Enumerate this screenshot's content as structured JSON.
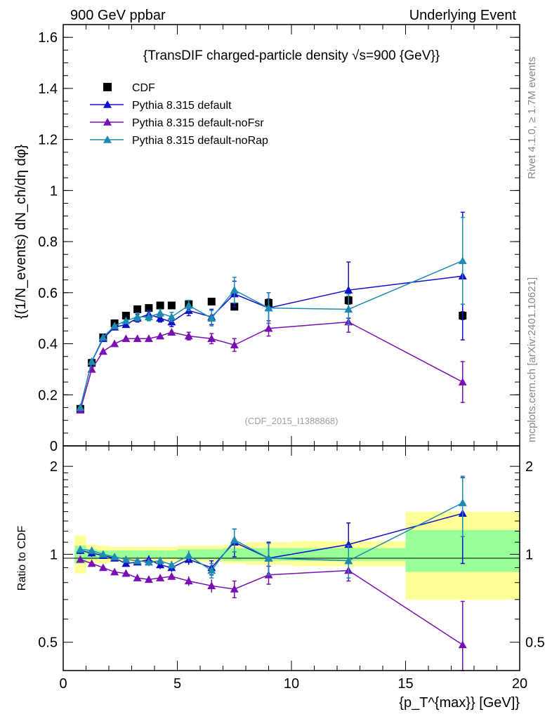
{
  "header": {
    "left": "900 GeV ppbar",
    "right": "Underlying Event"
  },
  "side_labels": {
    "rivet": "Rivet 4.1.0, ≥ 1.7M events",
    "mcplots": "mcplots.cern.ch [arXiv:2401.10621]"
  },
  "chart_data": [
    {
      "type": "scatter",
      "panel": "main",
      "title": "{TransDIF charged-particle density √s=900 {GeV}}",
      "ylabel": "{(1/N_events) dN_ch/dη dφ}",
      "xlabel": "{p_T^{max}} [GeV]}",
      "xlim": [
        0,
        20
      ],
      "ylim": [
        0,
        1.65
      ],
      "yticks": [
        "0",
        "0.2",
        "0.4",
        "0.6",
        "0.8",
        "1",
        "1.2",
        "1.4",
        "1.6"
      ],
      "xticks": [
        "0",
        "5",
        "10",
        "15",
        "20"
      ],
      "watermark": "(CDF_2015_I1388868)",
      "legend": [
        "CDF",
        "Pythia 8.315 default",
        "Pythia 8.315 default-noFsr",
        "Pythia 8.315 default-noRap"
      ],
      "series": [
        {
          "name": "CDF",
          "color": "#000000",
          "marker": "square",
          "x": [
            0.75,
            1.25,
            1.75,
            2.25,
            2.75,
            3.25,
            3.75,
            4.25,
            4.75,
            5.5,
            6.5,
            7.5,
            9.0,
            12.5,
            17.5
          ],
          "y": [
            0.145,
            0.325,
            0.425,
            0.48,
            0.51,
            0.535,
            0.54,
            0.55,
            0.55,
            0.555,
            0.565,
            0.545,
            0.56,
            0.57,
            0.51
          ],
          "err": [
            0.005,
            0.005,
            0.005,
            0.005,
            0.005,
            0.005,
            0.005,
            0.005,
            0.005,
            0.008,
            0.008,
            0.01,
            0.015,
            0.015,
            0.015
          ]
        },
        {
          "name": "Pythia 8.315 default",
          "color": "#1010cc",
          "marker": "triangle",
          "x": [
            0.75,
            1.25,
            1.75,
            2.25,
            2.75,
            3.25,
            3.75,
            4.25,
            4.75,
            5.5,
            6.5,
            7.5,
            9.0,
            12.5,
            17.5
          ],
          "y": [
            0.15,
            0.33,
            0.42,
            0.465,
            0.475,
            0.5,
            0.515,
            0.5,
            0.485,
            0.53,
            0.505,
            0.595,
            0.54,
            0.61,
            0.665
          ],
          "err": [
            0.005,
            0.008,
            0.01,
            0.012,
            0.012,
            0.015,
            0.015,
            0.015,
            0.018,
            0.02,
            0.03,
            0.05,
            0.06,
            0.11,
            0.25
          ]
        },
        {
          "name": "Pythia 8.315 default-noFsr",
          "color": "#7a0fb4",
          "marker": "triangle",
          "x": [
            0.75,
            1.25,
            1.75,
            2.25,
            2.75,
            3.25,
            3.75,
            4.25,
            4.75,
            5.5,
            6.5,
            7.5,
            9.0,
            12.5,
            17.5
          ],
          "y": [
            0.14,
            0.3,
            0.37,
            0.4,
            0.42,
            0.42,
            0.42,
            0.43,
            0.445,
            0.43,
            0.42,
            0.395,
            0.46,
            0.485,
            0.25
          ],
          "err": [
            0.005,
            0.008,
            0.01,
            0.01,
            0.01,
            0.01,
            0.01,
            0.012,
            0.012,
            0.015,
            0.02,
            0.025,
            0.03,
            0.04,
            0.08
          ]
        },
        {
          "name": "Pythia 8.315 default-noRap",
          "color": "#1d8ab0",
          "marker": "triangle",
          "x": [
            0.75,
            1.25,
            1.75,
            2.25,
            2.75,
            3.25,
            3.75,
            4.25,
            4.75,
            5.5,
            6.5,
            7.5,
            9.0,
            12.5,
            17.5
          ],
          "y": [
            0.15,
            0.33,
            0.425,
            0.47,
            0.49,
            0.505,
            0.505,
            0.52,
            0.505,
            0.55,
            0.5,
            0.61,
            0.54,
            0.535,
            0.725
          ],
          "err": [
            0.005,
            0.008,
            0.01,
            0.012,
            0.012,
            0.015,
            0.015,
            0.015,
            0.018,
            0.02,
            0.03,
            0.05,
            0.06,
            0.06,
            0.17
          ]
        }
      ]
    },
    {
      "type": "scatter",
      "panel": "ratio",
      "ylabel": "Ratio to CDF",
      "ylim": [
        0.4,
        2.35
      ],
      "yscale": "log",
      "yticks": [
        "0.5",
        "1",
        "2"
      ],
      "xticks": [
        "0",
        "5",
        "10",
        "15",
        "20"
      ],
      "reference_line": 1,
      "bands": {
        "bins": [
          [
            0.5,
            1.0
          ],
          [
            1.0,
            1.5
          ],
          [
            1.5,
            2.0
          ],
          [
            2.0,
            2.5
          ],
          [
            2.5,
            3.0
          ],
          [
            3.0,
            3.5
          ],
          [
            3.5,
            4.0
          ],
          [
            4.0,
            4.5
          ],
          [
            4.5,
            5.0
          ],
          [
            5.0,
            6.0
          ],
          [
            6.0,
            7.0
          ],
          [
            7.0,
            8.0
          ],
          [
            8.0,
            10.0
          ],
          [
            10.0,
            15.0
          ],
          [
            15.0,
            20.0
          ]
        ],
        "stat_lo": [
          0.93,
          0.96,
          0.97,
          0.97,
          0.97,
          0.97,
          0.97,
          0.97,
          0.97,
          0.96,
          0.96,
          0.95,
          0.95,
          0.95,
          0.87
        ],
        "stat_hi": [
          1.07,
          1.04,
          1.03,
          1.03,
          1.03,
          1.03,
          1.03,
          1.03,
          1.03,
          1.04,
          1.04,
          1.05,
          1.05,
          1.05,
          1.21
        ],
        "tot_lo": [
          0.86,
          0.93,
          0.93,
          0.94,
          0.94,
          0.94,
          0.94,
          0.94,
          0.94,
          0.94,
          0.94,
          0.93,
          0.92,
          0.91,
          0.7
        ],
        "tot_hi": [
          1.16,
          1.08,
          1.07,
          1.06,
          1.06,
          1.06,
          1.06,
          1.06,
          1.06,
          1.07,
          1.07,
          1.08,
          1.1,
          1.11,
          1.4
        ]
      },
      "series": [
        {
          "name": "Pythia 8.315 default",
          "color": "#1010cc",
          "x": [
            0.75,
            1.25,
            1.75,
            2.25,
            2.75,
            3.25,
            3.75,
            4.25,
            4.75,
            5.5,
            6.5,
            7.5,
            9.0,
            12.5,
            17.5
          ],
          "y": [
            1.03,
            1.01,
            0.99,
            0.97,
            0.93,
            0.94,
            0.96,
            0.92,
            0.9,
            0.96,
            0.9,
            1.1,
            0.97,
            1.08,
            1.38
          ],
          "err": [
            0.03,
            0.03,
            0.02,
            0.02,
            0.02,
            0.02,
            0.03,
            0.03,
            0.03,
            0.04,
            0.05,
            0.12,
            0.13,
            0.2,
            0.45
          ]
        },
        {
          "name": "Pythia 8.315 default-noFsr",
          "color": "#7a0fb4",
          "x": [
            0.75,
            1.25,
            1.75,
            2.25,
            2.75,
            3.25,
            3.75,
            4.25,
            4.75,
            5.5,
            6.5,
            7.5,
            9.0,
            12.5,
            17.5
          ],
          "y": [
            0.96,
            0.93,
            0.9,
            0.87,
            0.86,
            0.83,
            0.82,
            0.83,
            0.84,
            0.81,
            0.78,
            0.76,
            0.85,
            0.88,
            0.49
          ],
          "err": [
            0.02,
            0.02,
            0.02,
            0.02,
            0.02,
            0.02,
            0.02,
            0.02,
            0.02,
            0.03,
            0.04,
            0.05,
            0.06,
            0.07,
            0.2
          ]
        },
        {
          "name": "Pythia 8.315 default-noRap",
          "color": "#1d8ab0",
          "x": [
            0.75,
            1.25,
            1.75,
            2.25,
            2.75,
            3.25,
            3.75,
            4.25,
            4.75,
            5.5,
            6.5,
            7.5,
            9.0,
            12.5,
            17.5
          ],
          "y": [
            1.04,
            1.03,
            1.0,
            0.98,
            0.96,
            0.95,
            0.94,
            0.95,
            0.92,
            0.99,
            0.88,
            1.12,
            0.97,
            0.95,
            1.5
          ],
          "err": [
            0.03,
            0.03,
            0.02,
            0.02,
            0.02,
            0.02,
            0.03,
            0.03,
            0.03,
            0.04,
            0.05,
            0.1,
            0.12,
            0.12,
            0.35
          ]
        }
      ]
    }
  ]
}
